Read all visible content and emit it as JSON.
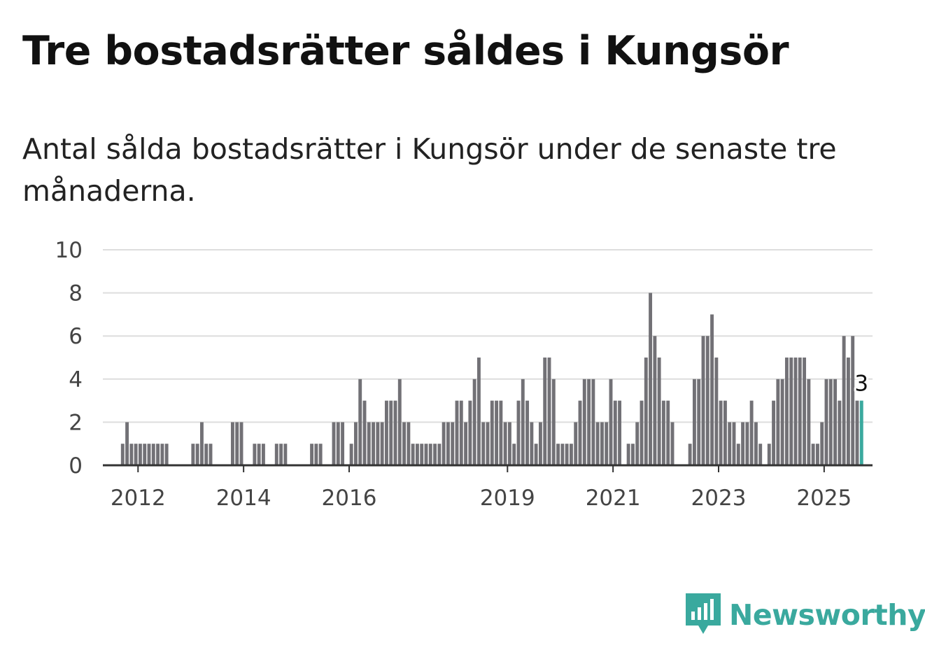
{
  "header": {
    "title": "Tre bostadsrätter såldes i Kungsör",
    "subtitle": "Antal sålda bostadsrätter i Kungsör under de senaste tre månaderna."
  },
  "brand": {
    "name": "Newsworthy",
    "color": "#3aa99e",
    "icon": "newsworthy-logo-icon"
  },
  "chart_data": {
    "type": "bar",
    "title": "Tre bostadsrätter såldes i Kungsör",
    "subtitle": "Antal sålda bostadsrätter i Kungsör under de senaste tre månaderna.",
    "xlabel": "",
    "ylabel": "",
    "ylim": [
      0,
      10
    ],
    "y_ticks": [
      0,
      2,
      4,
      6,
      8,
      10
    ],
    "x_tick_labels": [
      "2012",
      "2014",
      "2016",
      "2019",
      "2021",
      "2023",
      "2025"
    ],
    "x_range": [
      "2011-05",
      "2025-12"
    ],
    "grid": true,
    "bar_color": "#727176",
    "highlight_color": "#3aa99e",
    "highlight_label": "3",
    "series": [
      {
        "values": [
          [
            "2011-09",
            1
          ],
          [
            "2011-10",
            2
          ],
          [
            "2011-11",
            1
          ],
          [
            "2011-12",
            1
          ],
          [
            "2012-01",
            1
          ],
          [
            "2012-02",
            1
          ],
          [
            "2012-03",
            1
          ],
          [
            "2012-04",
            1
          ],
          [
            "2012-05",
            1
          ],
          [
            "2012-06",
            1
          ],
          [
            "2012-07",
            1
          ],
          [
            "2013-01",
            1
          ],
          [
            "2013-02",
            1
          ],
          [
            "2013-03",
            2
          ],
          [
            "2013-04",
            1
          ],
          [
            "2013-05",
            1
          ],
          [
            "2013-10",
            2
          ],
          [
            "2013-11",
            2
          ],
          [
            "2013-12",
            2
          ],
          [
            "2014-03",
            1
          ],
          [
            "2014-04",
            1
          ],
          [
            "2014-05",
            1
          ],
          [
            "2014-08",
            1
          ],
          [
            "2014-09",
            1
          ],
          [
            "2014-10",
            1
          ],
          [
            "2015-04",
            1
          ],
          [
            "2015-05",
            1
          ],
          [
            "2015-06",
            1
          ],
          [
            "2015-09",
            2
          ],
          [
            "2015-10",
            2
          ],
          [
            "2015-11",
            2
          ],
          [
            "2016-01",
            1
          ],
          [
            "2016-02",
            2
          ],
          [
            "2016-03",
            4
          ],
          [
            "2016-04",
            3
          ],
          [
            "2016-05",
            2
          ],
          [
            "2016-06",
            2
          ],
          [
            "2016-07",
            2
          ],
          [
            "2016-08",
            2
          ],
          [
            "2016-09",
            3
          ],
          [
            "2016-10",
            3
          ],
          [
            "2016-11",
            3
          ],
          [
            "2016-12",
            4
          ],
          [
            "2017-01",
            2
          ],
          [
            "2017-02",
            2
          ],
          [
            "2017-03",
            1
          ],
          [
            "2017-04",
            1
          ],
          [
            "2017-05",
            1
          ],
          [
            "2017-06",
            1
          ],
          [
            "2017-07",
            1
          ],
          [
            "2017-08",
            1
          ],
          [
            "2017-09",
            1
          ],
          [
            "2017-10",
            2
          ],
          [
            "2017-11",
            2
          ],
          [
            "2017-12",
            2
          ],
          [
            "2018-01",
            3
          ],
          [
            "2018-02",
            3
          ],
          [
            "2018-03",
            2
          ],
          [
            "2018-04",
            3
          ],
          [
            "2018-05",
            4
          ],
          [
            "2018-06",
            5
          ],
          [
            "2018-07",
            2
          ],
          [
            "2018-08",
            2
          ],
          [
            "2018-09",
            3
          ],
          [
            "2018-10",
            3
          ],
          [
            "2018-11",
            3
          ],
          [
            "2018-12",
            2
          ],
          [
            "2019-01",
            2
          ],
          [
            "2019-02",
            1
          ],
          [
            "2019-03",
            3
          ],
          [
            "2019-04",
            4
          ],
          [
            "2019-05",
            3
          ],
          [
            "2019-06",
            2
          ],
          [
            "2019-07",
            1
          ],
          [
            "2019-08",
            2
          ],
          [
            "2019-09",
            5
          ],
          [
            "2019-10",
            5
          ],
          [
            "2019-11",
            4
          ],
          [
            "2019-12",
            1
          ],
          [
            "2020-01",
            1
          ],
          [
            "2020-02",
            1
          ],
          [
            "2020-03",
            1
          ],
          [
            "2020-04",
            2
          ],
          [
            "2020-05",
            3
          ],
          [
            "2020-06",
            4
          ],
          [
            "2020-07",
            4
          ],
          [
            "2020-08",
            4
          ],
          [
            "2020-09",
            2
          ],
          [
            "2020-10",
            2
          ],
          [
            "2020-11",
            2
          ],
          [
            "2020-12",
            4
          ],
          [
            "2021-01",
            3
          ],
          [
            "2021-02",
            3
          ],
          [
            "2021-04",
            1
          ],
          [
            "2021-05",
            1
          ],
          [
            "2021-06",
            2
          ],
          [
            "2021-07",
            3
          ],
          [
            "2021-08",
            5
          ],
          [
            "2021-09",
            8
          ],
          [
            "2021-10",
            6
          ],
          [
            "2021-11",
            5
          ],
          [
            "2021-12",
            3
          ],
          [
            "2022-01",
            3
          ],
          [
            "2022-02",
            2
          ],
          [
            "2022-06",
            1
          ],
          [
            "2022-07",
            4
          ],
          [
            "2022-08",
            4
          ],
          [
            "2022-09",
            6
          ],
          [
            "2022-10",
            6
          ],
          [
            "2022-11",
            7
          ],
          [
            "2022-12",
            5
          ],
          [
            "2023-01",
            3
          ],
          [
            "2023-02",
            3
          ],
          [
            "2023-03",
            2
          ],
          [
            "2023-04",
            2
          ],
          [
            "2023-05",
            1
          ],
          [
            "2023-06",
            2
          ],
          [
            "2023-07",
            2
          ],
          [
            "2023-08",
            3
          ],
          [
            "2023-09",
            2
          ],
          [
            "2023-10",
            1
          ],
          [
            "2023-12",
            1
          ],
          [
            "2024-01",
            3
          ],
          [
            "2024-02",
            4
          ],
          [
            "2024-03",
            4
          ],
          [
            "2024-04",
            5
          ],
          [
            "2024-05",
            5
          ],
          [
            "2024-06",
            5
          ],
          [
            "2024-07",
            5
          ],
          [
            "2024-08",
            5
          ],
          [
            "2024-09",
            4
          ],
          [
            "2024-10",
            1
          ],
          [
            "2024-11",
            1
          ],
          [
            "2024-12",
            2
          ],
          [
            "2025-01",
            4
          ],
          [
            "2025-02",
            4
          ],
          [
            "2025-03",
            4
          ],
          [
            "2025-04",
            3
          ],
          [
            "2025-05",
            6
          ],
          [
            "2025-06",
            5
          ],
          [
            "2025-07",
            6
          ],
          [
            "2025-08",
            3
          ],
          [
            "2025-09",
            3
          ]
        ]
      }
    ]
  }
}
